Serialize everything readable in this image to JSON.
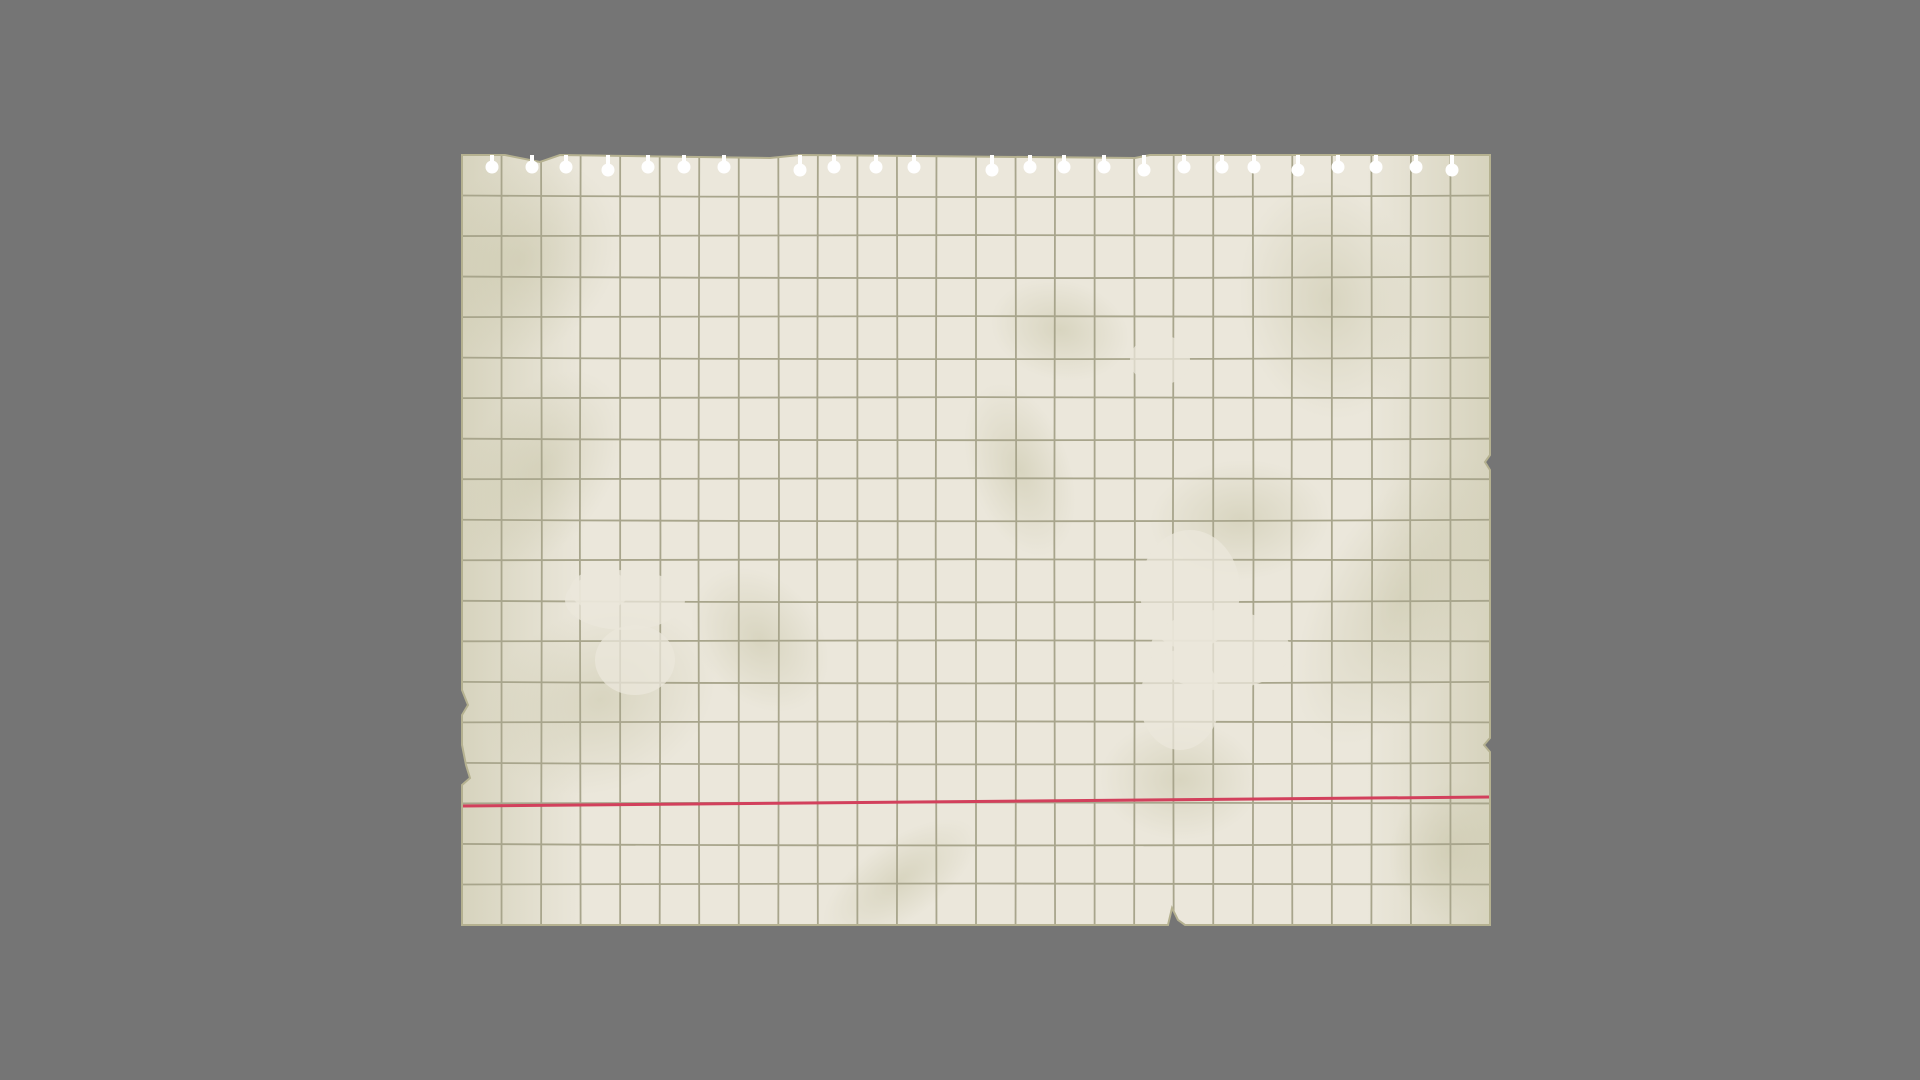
{
  "scene": {
    "description_label": "",
    "background_color": "#757575",
    "paper": {
      "fill_color": "#ebe7db",
      "grid_color": "#a8a58c",
      "stain_color": "#c9c6aa",
      "margin_line_color": "#d2405c",
      "edge_color": "#b5b190",
      "hole_color": "#ffffff",
      "grid_columns": 26,
      "grid_rows": 19,
      "spiral_hole_count": 24,
      "style": "torn graph paper sheet"
    }
  }
}
